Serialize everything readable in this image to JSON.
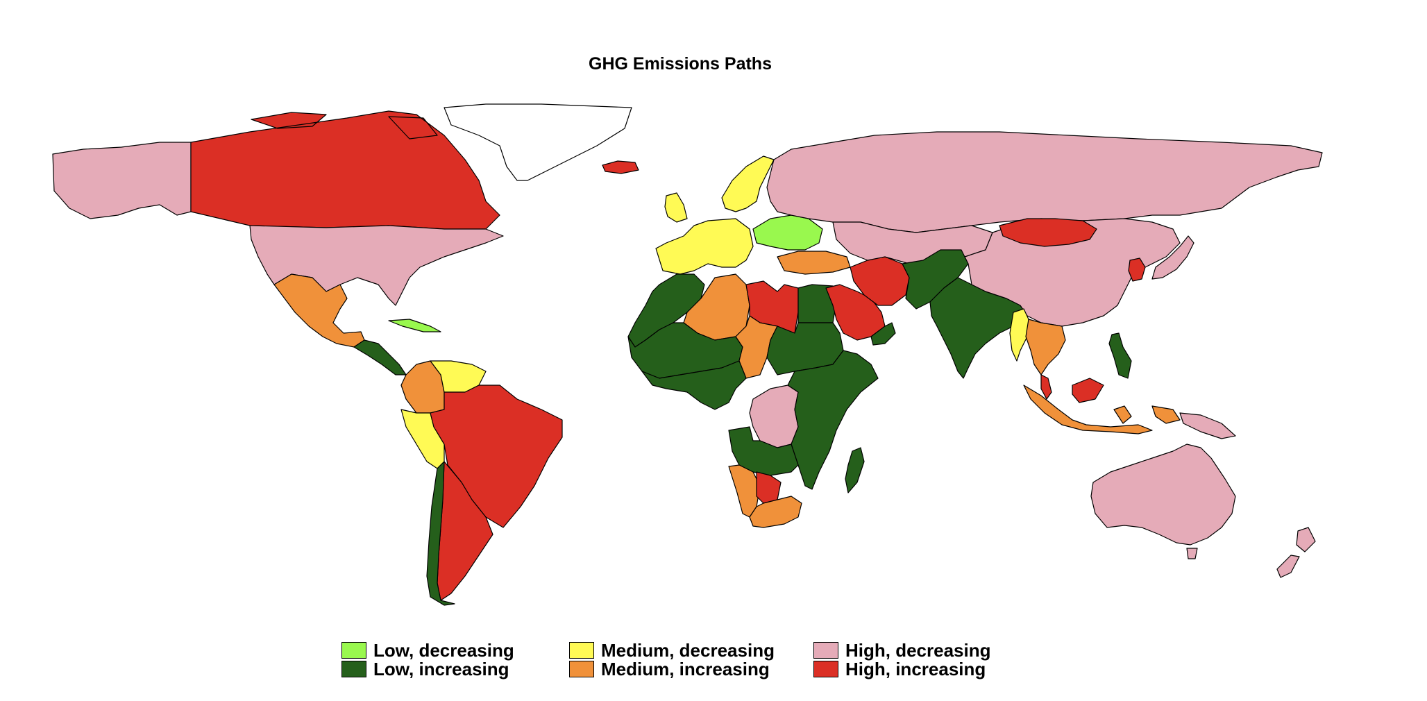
{
  "title": "GHG Emissions Paths",
  "colors": {
    "low_decreasing": "#99F84E",
    "low_increasing": "#255F1B",
    "medium_decreasing": "#FFFA55",
    "medium_increasing": "#F0913A",
    "high_decreasing": "#E5ABB8",
    "high_increasing": "#DB2F25",
    "no_data": "#FFFFFF",
    "border": "#000000"
  },
  "legend": {
    "items": [
      {
        "key": "low_decreasing",
        "label": "Low, decreasing"
      },
      {
        "key": "low_increasing",
        "label": "Low, increasing"
      },
      {
        "key": "medium_decreasing",
        "label": "Medium, decreasing"
      },
      {
        "key": "medium_increasing",
        "label": "Medium, increasing"
      },
      {
        "key": "high_decreasing",
        "label": "High, decreasing"
      },
      {
        "key": "high_increasing",
        "label": "High, increasing"
      }
    ]
  },
  "regions": [
    {
      "name": "Alaska",
      "category": "high_decreasing"
    },
    {
      "name": "Canada",
      "category": "high_increasing"
    },
    {
      "name": "Greenland",
      "category": "no_data"
    },
    {
      "name": "United States",
      "category": "high_decreasing"
    },
    {
      "name": "Mexico",
      "category": "medium_increasing"
    },
    {
      "name": "Central America",
      "category": "low_increasing"
    },
    {
      "name": "Cuba",
      "category": "low_decreasing"
    },
    {
      "name": "Colombia",
      "category": "medium_increasing"
    },
    {
      "name": "Venezuela",
      "category": "medium_decreasing"
    },
    {
      "name": "Peru",
      "category": "medium_decreasing"
    },
    {
      "name": "Brazil",
      "category": "high_increasing"
    },
    {
      "name": "Argentina",
      "category": "high_increasing"
    },
    {
      "name": "Chile",
      "category": "low_increasing"
    },
    {
      "name": "Iceland",
      "category": "high_increasing"
    },
    {
      "name": "United Kingdom",
      "category": "medium_decreasing"
    },
    {
      "name": "Western Europe",
      "category": "medium_decreasing"
    },
    {
      "name": "Scandinavia",
      "category": "medium_decreasing"
    },
    {
      "name": "Eastern Europe",
      "category": "low_decreasing"
    },
    {
      "name": "Russia",
      "category": "high_decreasing"
    },
    {
      "name": "Turkey",
      "category": "medium_increasing"
    },
    {
      "name": "North Africa West",
      "category": "low_increasing"
    },
    {
      "name": "Algeria",
      "category": "medium_increasing"
    },
    {
      "name": "Libya",
      "category": "high_increasing"
    },
    {
      "name": "Egypt",
      "category": "low_increasing"
    },
    {
      "name": "Sahel",
      "category": "low_increasing"
    },
    {
      "name": "Chad",
      "category": "medium_increasing"
    },
    {
      "name": "Sudan",
      "category": "low_increasing"
    },
    {
      "name": "West Africa",
      "category": "low_increasing"
    },
    {
      "name": "DR Congo",
      "category": "high_decreasing"
    },
    {
      "name": "East Africa",
      "category": "low_increasing"
    },
    {
      "name": "Angola",
      "category": "low_increasing"
    },
    {
      "name": "Namibia",
      "category": "medium_increasing"
    },
    {
      "name": "Botswana",
      "category": "high_increasing"
    },
    {
      "name": "South Africa",
      "category": "medium_increasing"
    },
    {
      "name": "Madagascar",
      "category": "low_increasing"
    },
    {
      "name": "Saudi Arabia",
      "category": "high_increasing"
    },
    {
      "name": "Iran",
      "category": "high_increasing"
    },
    {
      "name": "Oman",
      "category": "low_increasing"
    },
    {
      "name": "Kazakhstan",
      "category": "high_decreasing"
    },
    {
      "name": "Pakistan Afghanistan",
      "category": "low_increasing"
    },
    {
      "name": "India",
      "category": "low_increasing"
    },
    {
      "name": "China",
      "category": "high_decreasing"
    },
    {
      "name": "Mongolia",
      "category": "high_increasing"
    },
    {
      "name": "Myanmar",
      "category": "medium_decreasing"
    },
    {
      "name": "Southeast Asia",
      "category": "medium_increasing"
    },
    {
      "name": "Korea",
      "category": "high_increasing"
    },
    {
      "name": "Japan",
      "category": "high_decreasing"
    },
    {
      "name": "Philippines",
      "category": "low_increasing"
    },
    {
      "name": "Indonesia",
      "category": "medium_increasing"
    },
    {
      "name": "Malaysia",
      "category": "high_increasing"
    },
    {
      "name": "Papua",
      "category": "high_decreasing"
    },
    {
      "name": "Australia",
      "category": "high_decreasing"
    },
    {
      "name": "New Zealand",
      "category": "high_decreasing"
    }
  ]
}
